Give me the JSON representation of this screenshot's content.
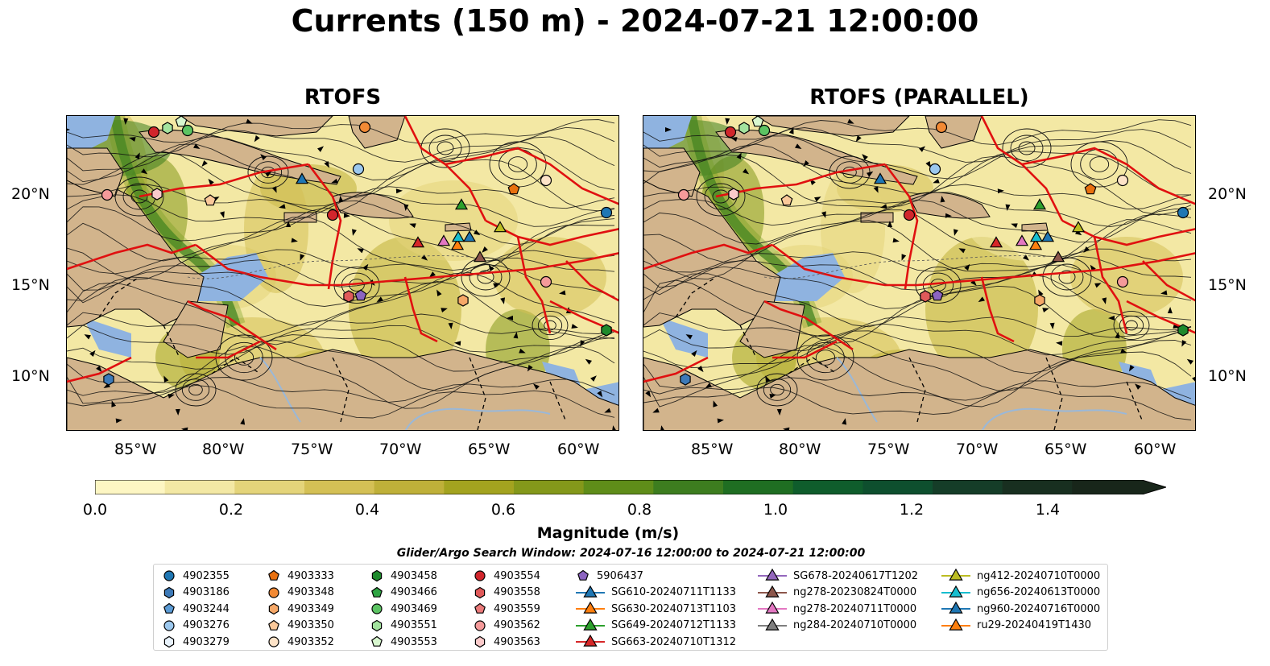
{
  "title": "Currents (150 m) - 2024-07-21 12:00:00",
  "panels": [
    {
      "title": "RTOFS"
    },
    {
      "title": "RTOFS (PARALLEL)"
    }
  ],
  "lat_ticks": [
    "20°N",
    "15°N",
    "10°N"
  ],
  "lon_ticks": [
    "85°W",
    "80°W",
    "75°W",
    "70°W",
    "65°W",
    "60°W"
  ],
  "colors": {
    "land": "#d2b48c",
    "shallow_water": "#8fb3e0",
    "eez_lines": "#e01010",
    "colormap": [
      "#fdf6c3",
      "#f3e8a4",
      "#e4d47a",
      "#d4c055",
      "#bfb039",
      "#a3a31f",
      "#84981a",
      "#5f8d19",
      "#3d7d1f",
      "#1f6e22",
      "#0f5d2c",
      "#0e4f2e",
      "#153d28",
      "#182f20",
      "#18261a"
    ]
  },
  "colorbar": {
    "label": "Magnitude (m/s)",
    "range": [
      0.0,
      1.5
    ],
    "ticks": [
      "0.0",
      "0.2",
      "0.4",
      "0.6",
      "0.8",
      "1.0",
      "1.2",
      "1.4"
    ],
    "extend": "max"
  },
  "search_window": "Glider/Argo Search Window: 2024-07-16 12:00:00 to 2024-07-21 12:00:00",
  "legend": [
    {
      "label": "4902355",
      "marker": "circle",
      "color": "#1f77b4"
    },
    {
      "label": "4903186",
      "marker": "hexagon",
      "color": "#3d7ab8"
    },
    {
      "label": "4903244",
      "marker": "pentagon",
      "color": "#5b9bd5"
    },
    {
      "label": "4903276",
      "marker": "circle",
      "color": "#9cc8ee"
    },
    {
      "label": "4903279",
      "marker": "hexagon",
      "color": "#e8f2fb"
    },
    {
      "label": "4903333",
      "marker": "pentagon",
      "color": "#e8700f"
    },
    {
      "label": "4903348",
      "marker": "circle",
      "color": "#f28a35"
    },
    {
      "label": "4903349",
      "marker": "hexagon",
      "color": "#f6a868"
    },
    {
      "label": "4903350",
      "marker": "pentagon",
      "color": "#fbc99a"
    },
    {
      "label": "4903352",
      "marker": "circle",
      "color": "#fde3c8"
    },
    {
      "label": "4903458",
      "marker": "hexagon",
      "color": "#1e8a2c"
    },
    {
      "label": "4903466",
      "marker": "pentagon",
      "color": "#2ea443"
    },
    {
      "label": "4903469",
      "marker": "circle",
      "color": "#5cc463"
    },
    {
      "label": "4903551",
      "marker": "hexagon",
      "color": "#a3e39e"
    },
    {
      "label": "4903553",
      "marker": "pentagon",
      "color": "#d8f7cf"
    },
    {
      "label": "4903554",
      "marker": "circle",
      "color": "#d1262c"
    },
    {
      "label": "4903558",
      "marker": "hexagon",
      "color": "#e05a5a"
    },
    {
      "label": "4903559",
      "marker": "pentagon",
      "color": "#eb7a7a"
    },
    {
      "label": "4903562",
      "marker": "circle",
      "color": "#f59a9a"
    },
    {
      "label": "4903563",
      "marker": "hexagon",
      "color": "#fbcaca"
    },
    {
      "label": "5906437",
      "marker": "pentagon",
      "color": "#8c64c0"
    },
    {
      "label": "SG610-20240711T1133",
      "marker": "triangle",
      "color": "#1f77b4"
    },
    {
      "label": "SG630-20240713T1103",
      "marker": "triangle",
      "color": "#ff7f0e"
    },
    {
      "label": "SG649-20240712T1133",
      "marker": "triangle",
      "color": "#2ca02c"
    },
    {
      "label": "SG663-20240710T1312",
      "marker": "triangle",
      "color": "#d62728"
    },
    {
      "label": "SG678-20240617T1202",
      "marker": "triangle",
      "color": "#9467bd"
    },
    {
      "label": "ng278-20230824T0000",
      "marker": "triangle",
      "color": "#8c564b"
    },
    {
      "label": "ng278-20240711T0000",
      "marker": "triangle",
      "color": "#e377c2"
    },
    {
      "label": "ng284-20240710T0000",
      "marker": "triangle",
      "color": "#7f7f7f"
    },
    {
      "label": "ng412-20240710T0000",
      "marker": "triangle",
      "color": "#bcbd22"
    },
    {
      "label": "ng656-20240613T0000",
      "marker": "triangle",
      "color": "#17becf"
    },
    {
      "label": "ng960-20240716T0000",
      "marker": "triangle",
      "color": "#1f77b4"
    },
    {
      "label": "ru29-20240419T1430",
      "marker": "triangle",
      "color": "#ff7f0e"
    }
  ]
}
